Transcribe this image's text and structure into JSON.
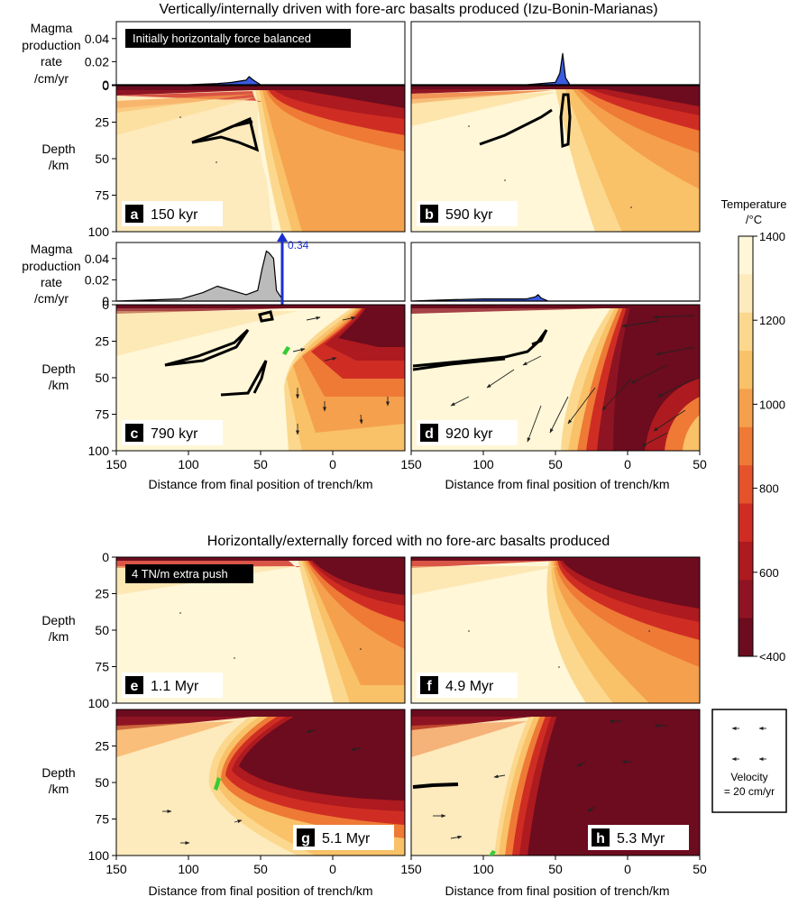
{
  "titles": {
    "top": "Vertically/internally driven with fore-arc basalts produced (Izu-Bonin-Marianas)",
    "bottom": "Horizontally/externally forced with no fore-arc basalts produced"
  },
  "labels": {
    "magma_l1": "Magma",
    "magma_l2": "production",
    "magma_l3": "rate",
    "magma_l4": "/cm/yr",
    "depth_l1": "Depth",
    "depth_l2": "/km",
    "xlabel": "Distance from final position of trench/km",
    "note_a": "Initially horizontally force balanced",
    "note_e": "4 TN/m extra push",
    "arrow_label": "0.34"
  },
  "colors": {
    "magma_fill_grey": "#bbbbbb",
    "magma_fill_blue": "#3a5be0",
    "highlight_arrow": "#1a2fd0",
    "basalt_green": "#33cc33"
  },
  "chart_data": {
    "type": "heatmap",
    "x_axis": {
      "range": [
        150,
        -50
      ],
      "ticks": [
        "150",
        "100",
        "50",
        "0",
        "150",
        "100",
        "50",
        "0",
        "50"
      ]
    },
    "depth_axis": {
      "range": [
        0,
        100
      ],
      "ticks": [
        "0",
        "25",
        "50",
        "75",
        "100"
      ],
      "ticks_no_zero": [
        "25",
        "50",
        "75",
        "100"
      ]
    },
    "magma_axis": {
      "range": [
        0,
        0.05
      ],
      "ticks": [
        "0",
        "0.02",
        "0.04"
      ]
    },
    "panels": [
      {
        "letter": "a",
        "time": "150 kyr",
        "magma": [
          [
            150,
            0
          ],
          [
            100,
            0
          ],
          [
            80,
            0.001
          ],
          [
            70,
            0.002
          ],
          [
            60,
            0.004
          ],
          [
            58,
            0.007
          ],
          [
            55,
            0.004
          ],
          [
            50,
            0
          ],
          [
            0,
            0
          ],
          [
            -50,
            0
          ]
        ]
      },
      {
        "letter": "b",
        "time": "590 kyr",
        "magma": [
          [
            150,
            0
          ],
          [
            70,
            0
          ],
          [
            60,
            0.001
          ],
          [
            50,
            0.002
          ],
          [
            47,
            0.01
          ],
          [
            45,
            0.027
          ],
          [
            43,
            0.006
          ],
          [
            40,
            0
          ],
          [
            0,
            0
          ],
          [
            -50,
            0
          ]
        ]
      },
      {
        "letter": "c",
        "time": "790 kyr",
        "magma": [
          [
            150,
            0
          ],
          [
            105,
            0.002
          ],
          [
            90,
            0.008
          ],
          [
            80,
            0.014
          ],
          [
            70,
            0.01
          ],
          [
            60,
            0.006
          ],
          [
            52,
            0.01
          ],
          [
            49,
            0.03
          ],
          [
            46,
            0.047
          ],
          [
            44,
            0.045
          ],
          [
            41,
            0.04
          ],
          [
            39,
            0.01
          ],
          [
            36,
            0.004
          ],
          [
            34,
            0
          ],
          [
            0,
            0
          ],
          [
            -50,
            0
          ]
        ],
        "spike_value": 0.34
      },
      {
        "letter": "d",
        "time": "920 kyr",
        "magma": [
          [
            150,
            0
          ],
          [
            130,
            0.001
          ],
          [
            100,
            0.002
          ],
          [
            80,
            0.002
          ],
          [
            70,
            0.002
          ],
          [
            64,
            0.004
          ],
          [
            62,
            0.006
          ],
          [
            60,
            0.003
          ],
          [
            55,
            0
          ],
          [
            0,
            0
          ],
          [
            -50,
            0
          ]
        ]
      },
      {
        "letter": "e",
        "time": "1.1 Myr"
      },
      {
        "letter": "f",
        "time": "4.9 Myr"
      },
      {
        "letter": "g",
        "time": "5.1 Myr"
      },
      {
        "letter": "h",
        "time": "5.3 Myr"
      }
    ],
    "colorbar": {
      "title_l1": "Temperature",
      "title_l2": "/°C",
      "tick_labels": [
        "1400",
        "1200",
        "1000",
        "800",
        "600",
        "<400"
      ],
      "tick_values": [
        1400,
        1200,
        1000,
        800,
        600,
        400
      ],
      "colors": [
        "#fff7d8",
        "#fdeabd",
        "#fbd88e",
        "#f9c168",
        "#f5a04c",
        "#ee7a36",
        "#e4532a",
        "#cf2d23",
        "#ad1a1f",
        "#8f1423",
        "#6c0c1e"
      ]
    },
    "velocity_legend": {
      "label_l1": "Velocity",
      "label_l2": "= 20 cm/yr"
    }
  }
}
